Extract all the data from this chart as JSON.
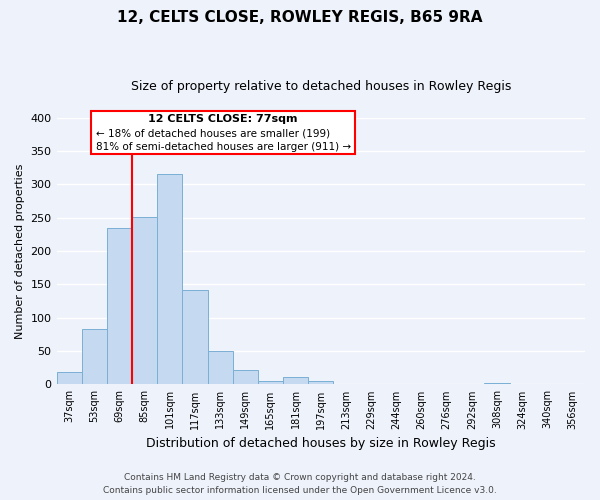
{
  "title": "12, CELTS CLOSE, ROWLEY REGIS, B65 9RA",
  "subtitle": "Size of property relative to detached houses in Rowley Regis",
  "xlabel": "Distribution of detached houses by size in Rowley Regis",
  "ylabel": "Number of detached properties",
  "bar_color": "#c5d9f0",
  "bar_edge_color": "#7bafd4",
  "background_color": "#eef2fb",
  "grid_color": "#ffffff",
  "bins": [
    "37sqm",
    "53sqm",
    "69sqm",
    "85sqm",
    "101sqm",
    "117sqm",
    "133sqm",
    "149sqm",
    "165sqm",
    "181sqm",
    "197sqm",
    "213sqm",
    "229sqm",
    "244sqm",
    "260sqm",
    "276sqm",
    "292sqm",
    "308sqm",
    "324sqm",
    "340sqm",
    "356sqm"
  ],
  "values": [
    19,
    83,
    234,
    251,
    315,
    142,
    50,
    21,
    5,
    11,
    5,
    0,
    1,
    0,
    0,
    0,
    0,
    2,
    0,
    0,
    0
  ],
  "ylim": [
    0,
    400
  ],
  "yticks": [
    0,
    50,
    100,
    150,
    200,
    250,
    300,
    350,
    400
  ],
  "property_label": "12 CELTS CLOSE: 77sqm",
  "pct_smaller": 18,
  "count_smaller": 199,
  "pct_larger": 81,
  "count_larger": 911,
  "vline_bin_index": 3,
  "footer_line1": "Contains HM Land Registry data © Crown copyright and database right 2024.",
  "footer_line2": "Contains public sector information licensed under the Open Government Licence v3.0."
}
